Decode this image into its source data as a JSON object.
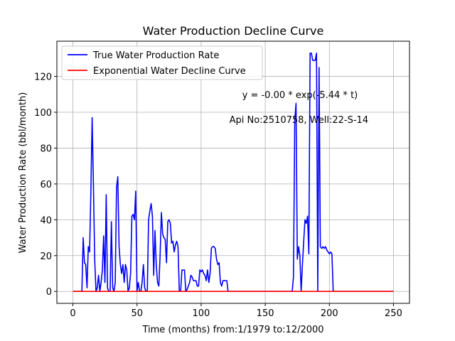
{
  "chart_data": {
    "type": "line",
    "title": "Water Production Decline Curve",
    "xlabel": "Time (months) from:1/1979 to:12/2000",
    "ylabel": "Water Production Rate (bbl/month)",
    "xlim": [
      -12.5,
      262.5
    ],
    "ylim": [
      -6.65,
      139.65
    ],
    "xticks": [
      0,
      50,
      100,
      150,
      200,
      250
    ],
    "yticks": [
      0,
      20,
      40,
      60,
      80,
      100,
      120
    ],
    "grid": true,
    "legend_position": "top-left",
    "annotations": [
      {
        "text": "y = -0.00 * exp(-5.44 * t)",
        "x": 132,
        "y": 108
      },
      {
        "text": "Api No:2510758, Well:22-S-14",
        "x": 122,
        "y": 94
      }
    ],
    "series": [
      {
        "name": "True Water Production Rate",
        "color": "#0000ff",
        "points": [
          [
            0,
            0
          ],
          [
            1,
            0
          ],
          [
            2,
            0
          ],
          [
            3,
            0
          ],
          [
            4,
            0
          ],
          [
            5,
            0
          ],
          [
            6,
            0
          ],
          [
            7,
            0
          ],
          [
            8,
            30
          ],
          [
            9,
            16
          ],
          [
            10,
            15
          ],
          [
            11,
            2
          ],
          [
            12,
            25
          ],
          [
            13,
            22
          ],
          [
            14,
            55
          ],
          [
            15,
            97
          ],
          [
            16,
            60
          ],
          [
            17,
            18
          ],
          [
            18,
            0
          ],
          [
            19,
            2
          ],
          [
            20,
            9
          ],
          [
            21,
            0
          ],
          [
            22,
            5
          ],
          [
            23,
            12
          ],
          [
            24,
            31
          ],
          [
            25,
            5
          ],
          [
            26,
            54
          ],
          [
            27,
            2
          ],
          [
            28,
            0
          ],
          [
            29,
            0
          ],
          [
            30,
            39
          ],
          [
            31,
            2
          ],
          [
            32,
            0
          ],
          [
            33,
            5
          ],
          [
            34,
            58
          ],
          [
            35,
            64
          ],
          [
            36,
            25
          ],
          [
            37,
            15
          ],
          [
            38,
            10
          ],
          [
            39,
            15
          ],
          [
            40,
            5
          ],
          [
            41,
            15
          ],
          [
            42,
            12
          ],
          [
            43,
            0
          ],
          [
            44,
            2
          ],
          [
            45,
            10
          ],
          [
            46,
            42
          ],
          [
            47,
            43
          ],
          [
            48,
            40
          ],
          [
            49,
            56
          ],
          [
            50,
            0
          ],
          [
            51,
            5
          ],
          [
            52,
            0
          ],
          [
            53,
            0
          ],
          [
            54,
            5
          ],
          [
            55,
            15
          ],
          [
            56,
            2
          ],
          [
            57,
            0
          ],
          [
            58,
            0
          ],
          [
            59,
            40
          ],
          [
            60,
            45
          ],
          [
            61,
            49
          ],
          [
            62,
            42
          ],
          [
            63,
            9
          ],
          [
            64,
            34
          ],
          [
            65,
            15
          ],
          [
            66,
            5
          ],
          [
            67,
            3
          ],
          [
            68,
            20
          ],
          [
            69,
            44
          ],
          [
            70,
            32
          ],
          [
            71,
            30
          ],
          [
            72,
            29
          ],
          [
            73,
            16
          ],
          [
            74,
            39
          ],
          [
            75,
            40
          ],
          [
            76,
            38
          ],
          [
            77,
            27
          ],
          [
            78,
            28
          ],
          [
            79,
            22
          ],
          [
            80,
            26
          ],
          [
            81,
            28
          ],
          [
            82,
            25
          ],
          [
            83,
            0
          ],
          [
            84,
            0
          ],
          [
            85,
            12
          ],
          [
            86,
            12
          ],
          [
            87,
            12
          ],
          [
            88,
            0
          ],
          [
            89,
            1
          ],
          [
            90,
            3
          ],
          [
            91,
            5
          ],
          [
            92,
            9
          ],
          [
            93,
            8
          ],
          [
            94,
            6
          ],
          [
            95,
            6
          ],
          [
            96,
            6
          ],
          [
            97,
            3
          ],
          [
            98,
            3
          ],
          [
            99,
            12
          ],
          [
            100,
            11
          ],
          [
            101,
            12
          ],
          [
            102,
            10
          ],
          [
            103,
            9
          ],
          [
            104,
            6
          ],
          [
            105,
            12
          ],
          [
            106,
            5
          ],
          [
            107,
            10
          ],
          [
            108,
            24
          ],
          [
            109,
            25
          ],
          [
            110,
            25
          ],
          [
            111,
            24
          ],
          [
            112,
            18
          ],
          [
            113,
            15
          ],
          [
            114,
            16
          ],
          [
            115,
            5
          ],
          [
            116,
            3
          ],
          [
            117,
            6
          ],
          [
            118,
            6
          ],
          [
            119,
            6
          ],
          [
            120,
            6
          ],
          [
            121,
            0
          ],
          [
            125,
            0
          ],
          [
            130,
            0
          ],
          [
            140,
            0
          ],
          [
            150,
            0
          ],
          [
            160,
            0
          ],
          [
            170,
            0
          ],
          [
            171,
            0
          ],
          [
            172,
            8
          ],
          [
            173,
            95
          ],
          [
            174,
            105
          ],
          [
            175,
            18
          ],
          [
            176,
            25
          ],
          [
            177,
            20
          ],
          [
            178,
            0
          ],
          [
            179,
            15
          ],
          [
            180,
            28
          ],
          [
            181,
            40
          ],
          [
            182,
            38
          ],
          [
            183,
            42
          ],
          [
            184,
            21
          ],
          [
            185,
            133
          ],
          [
            186,
            133
          ],
          [
            187,
            129
          ],
          [
            188,
            129
          ],
          [
            189,
            129
          ],
          [
            190,
            133
          ],
          [
            191,
            0
          ],
          [
            192,
            125
          ],
          [
            193,
            25
          ],
          [
            194,
            24
          ],
          [
            195,
            25
          ],
          [
            196,
            24
          ],
          [
            197,
            25
          ],
          [
            198,
            23
          ],
          [
            199,
            22
          ],
          [
            200,
            21
          ],
          [
            201,
            22
          ],
          [
            202,
            21
          ],
          [
            203,
            0
          ],
          [
            210,
            0
          ],
          [
            220,
            0
          ],
          [
            230,
            0
          ],
          [
            240,
            0
          ],
          [
            250,
            0
          ]
        ]
      },
      {
        "name": "Exponential Water Decline Curve",
        "color": "#ff0000",
        "points": [
          [
            0,
            0
          ],
          [
            50,
            0
          ],
          [
            100,
            0
          ],
          [
            150,
            0
          ],
          [
            200,
            0
          ],
          [
            250,
            0
          ]
        ]
      }
    ]
  }
}
